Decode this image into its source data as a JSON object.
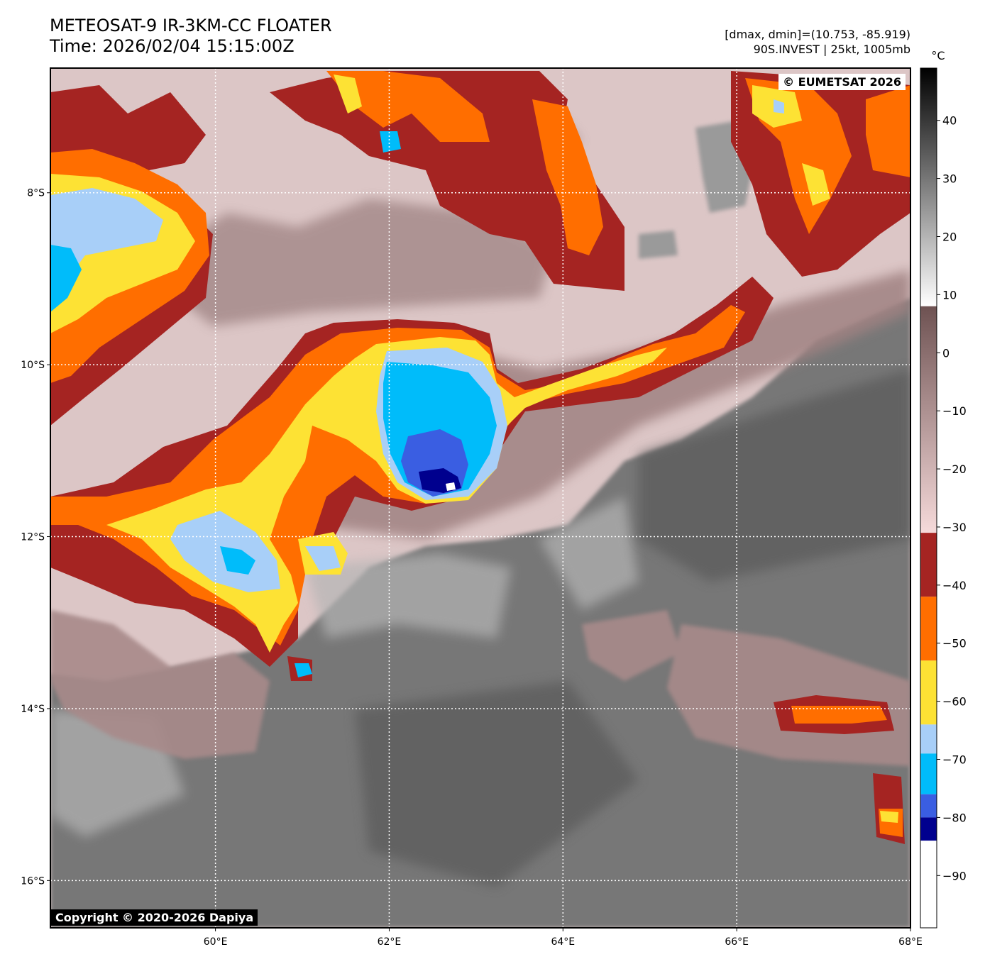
{
  "header": {
    "title_line1": "METEOSAT-9 IR-3KM-CC FLOATER",
    "title_line2": "Time: 2026/02/04 15:15:00Z",
    "stats_line1": "[dmax, dmin]=(10.753, -85.919)",
    "stats_line2": "90S.INVEST | 25kt, 1005mb"
  },
  "map": {
    "lon_range": [
      58.1,
      68.0
    ],
    "lat_range": [
      -16.55,
      -6.55
    ],
    "lon_ticks": [
      {
        "value": 60,
        "label": "60°E"
      },
      {
        "value": 62,
        "label": "62°E"
      },
      {
        "value": 64,
        "label": "64°E"
      },
      {
        "value": 66,
        "label": "66°E"
      },
      {
        "value": 68,
        "label": "68°E"
      }
    ],
    "lat_ticks": [
      {
        "value": -8,
        "label": "8°S"
      },
      {
        "value": -10,
        "label": "10°S"
      },
      {
        "value": -12,
        "label": "12°S"
      },
      {
        "value": -14,
        "label": "14°S"
      },
      {
        "value": -16,
        "label": "16°S"
      }
    ],
    "gridlines": true,
    "features": [
      {
        "name": "central-convective-core",
        "lon": 62.5,
        "lat": -10.8,
        "temp_c": -85
      },
      {
        "name": "western-cloud-band",
        "lon": 60.0,
        "lat": -12.3,
        "temp_c": -65
      },
      {
        "name": "northwest-cloud-mass",
        "lon": 58.9,
        "lat": -8.8,
        "temp_c": -60
      },
      {
        "name": "eastern-cloud-band",
        "lon": 65.8,
        "lat": -9.8,
        "temp_c": -50
      },
      {
        "name": "southeast-cloud-patch",
        "lon": 67.0,
        "lat": -14.0,
        "temp_c": -45
      },
      {
        "name": "northeast-cloud-patch",
        "lon": 67.2,
        "lat": -7.5,
        "temp_c": -50
      }
    ]
  },
  "colorbar": {
    "unit": "°C",
    "range": [
      -99,
      49
    ],
    "ticks": [
      {
        "value": 40,
        "label": "40"
      },
      {
        "value": 30,
        "label": "30"
      },
      {
        "value": 20,
        "label": "20"
      },
      {
        "value": 10,
        "label": "10"
      },
      {
        "value": 0,
        "label": "0"
      },
      {
        "value": -10,
        "label": "−10"
      },
      {
        "value": -20,
        "label": "−20"
      },
      {
        "value": -30,
        "label": "−30"
      },
      {
        "value": -40,
        "label": "−40"
      },
      {
        "value": -50,
        "label": "−50"
      },
      {
        "value": -60,
        "label": "−60"
      },
      {
        "value": -70,
        "label": "−70"
      },
      {
        "value": -80,
        "label": "−80"
      },
      {
        "value": -90,
        "label": "−90"
      }
    ],
    "segments": [
      {
        "from": 49,
        "to": 8,
        "kind": "gradient",
        "colors": [
          "#000000",
          "#ffffff"
        ]
      },
      {
        "from": 8,
        "to": -31,
        "kind": "gradient",
        "colors": [
          "#6e5252",
          "#f6dada"
        ]
      },
      {
        "from": -31,
        "to": -42,
        "color": "#a52422"
      },
      {
        "from": -42,
        "to": -53,
        "color": "#ff6e00"
      },
      {
        "from": -53,
        "to": -64,
        "color": "#fde234"
      },
      {
        "from": -64,
        "to": -69,
        "color": "#a8cff8"
      },
      {
        "from": -69,
        "to": -76,
        "color": "#00bcfa"
      },
      {
        "from": -76,
        "to": -80,
        "color": "#3a5ee2"
      },
      {
        "from": -80,
        "to": -84,
        "color": "#00008e"
      },
      {
        "from": -84,
        "to": -99,
        "color": "#ffffff"
      }
    ]
  },
  "credits": {
    "eumetsat": "© EUMETSAT 2026",
    "dapiya": "Copyright © 2020-2026 Dapiya"
  }
}
